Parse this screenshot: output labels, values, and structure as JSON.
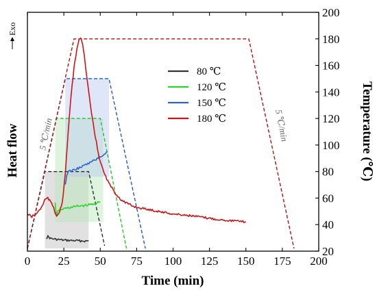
{
  "chart_data": {
    "type": "line",
    "xlabel": "Time (min)",
    "ylabel_left": "Heat flow",
    "ylabel_right": "Temperature (℃)",
    "exo_label": "Exo",
    "xlim": [
      0,
      200
    ],
    "ylim_right": [
      20,
      200
    ],
    "xticks": [
      "0",
      "25",
      "50",
      "75",
      "100",
      "125",
      "150",
      "175",
      "200"
    ],
    "yticks_right": [
      "20",
      "40",
      "60",
      "80",
      "100",
      "120",
      "140",
      "160",
      "180",
      "200"
    ],
    "annotations": [
      {
        "id": "ramp-up",
        "text": "5 ℃/min"
      },
      {
        "id": "ramp-down",
        "text": "5 ℃/min"
      }
    ],
    "legend": {
      "position": "upper-middle"
    },
    "temperature_programs": [
      {
        "name": "80 ℃",
        "color": "#2b2b2b",
        "points": [
          [
            0,
            22
          ],
          [
            12,
            80
          ],
          [
            42,
            80
          ],
          [
            53,
            24
          ]
        ]
      },
      {
        "name": "120 ℃",
        "color": "#22c322",
        "points": [
          [
            0,
            22
          ],
          [
            20,
            120
          ],
          [
            50,
            120
          ],
          [
            68,
            22
          ]
        ]
      },
      {
        "name": "150 ℃",
        "color": "#2457c8",
        "points": [
          [
            0,
            22
          ],
          [
            26,
            150
          ],
          [
            56,
            150
          ],
          [
            81,
            22
          ]
        ]
      },
      {
        "name": "180 ℃",
        "color": "#b01010",
        "points": [
          [
            0,
            22
          ],
          [
            32,
            180
          ],
          [
            152,
            180
          ],
          [
            183,
            22
          ]
        ]
      }
    ],
    "series": [
      {
        "name": "80 ℃",
        "color": "#333333",
        "x": [
          13,
          14,
          16,
          20,
          25,
          30,
          35,
          40,
          42
        ],
        "y": [
          30,
          31,
          29.5,
          28.8,
          28.2,
          28,
          27.8,
          27.6,
          27.8
        ]
      },
      {
        "name": "120 ℃",
        "color": "#2ad62a",
        "x": [
          19,
          20,
          21,
          23,
          25,
          30,
          35,
          40,
          45,
          50
        ],
        "y": [
          56,
          47,
          50,
          51,
          52,
          53,
          54,
          54.5,
          55.5,
          57
        ]
      },
      {
        "name": "150 ℃",
        "color": "#2a62d0",
        "x": [
          26,
          27,
          28,
          30,
          35,
          40,
          45,
          50,
          55
        ],
        "y": [
          70,
          77,
          80,
          80.5,
          82.5,
          85,
          88,
          91,
          95
        ]
      },
      {
        "name": "180 ℃",
        "color": "#cc1414",
        "x": [
          0,
          3,
          6,
          9,
          11,
          12,
          14,
          16,
          18,
          19,
          20,
          22,
          24,
          26,
          28,
          30,
          32,
          34,
          35,
          36,
          37,
          38,
          39,
          40,
          42,
          44,
          46,
          48,
          50,
          53,
          56,
          60,
          65,
          70,
          75,
          80,
          90,
          100,
          110,
          120,
          130,
          140,
          150
        ],
        "y": [
          48,
          46,
          48,
          52,
          56,
          59,
          60,
          57,
          53,
          49,
          47,
          49,
          57,
          78,
          110,
          138,
          158,
          172,
          178,
          180,
          180,
          176,
          168,
          158,
          140,
          124,
          110,
          98,
          87,
          78,
          71,
          64,
          58,
          55,
          53,
          52,
          50,
          48,
          47,
          45.5,
          44,
          43,
          42
        ]
      }
    ]
  }
}
